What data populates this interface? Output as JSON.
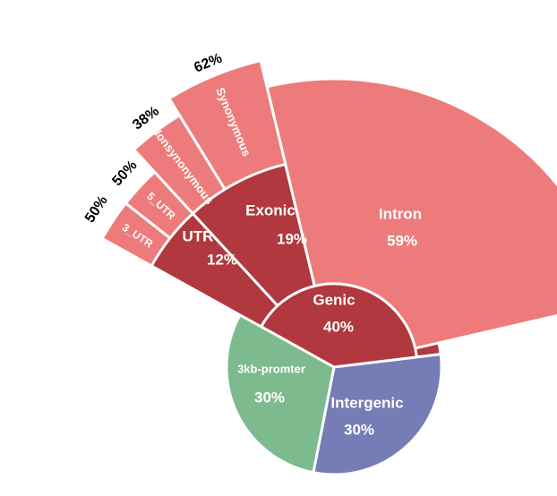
{
  "chart_data": {
    "type": "sunburst",
    "title": "",
    "root": {
      "categories": [
        {
          "name": "Genic",
          "value": 40,
          "label": "40%",
          "color": "#b0383e"
        },
        {
          "name": "Intergenic",
          "value": 30,
          "label": "30%",
          "color": "#767cb5"
        },
        {
          "name": "3kb-promter",
          "value": 30,
          "label": "30%",
          "color": "#7dba8d"
        }
      ]
    },
    "genic_breakdown": [
      {
        "name": "UTR",
        "value": 12,
        "label": "12%",
        "color": "#b0383e"
      },
      {
        "name": "Exonic",
        "value": 19,
        "label": "19%",
        "color": "#b0383e"
      },
      {
        "name": "Intron",
        "value": 59,
        "label": "59%",
        "color": "#ee7b7b"
      }
    ],
    "utr_breakdown": [
      {
        "name": "3_UTR",
        "value": 50,
        "label": "50%",
        "color": "#ee7b7b"
      },
      {
        "name": "5_UTR",
        "value": 50,
        "label": "50%",
        "color": "#ee7b7b"
      }
    ],
    "exonic_breakdown": [
      {
        "name": "Nonsynonymous",
        "value": 38,
        "label": "38%",
        "color": "#ee7b7b"
      },
      {
        "name": "Synonymous",
        "value": 62,
        "label": "62%",
        "color": "#ee7b7b"
      }
    ]
  }
}
